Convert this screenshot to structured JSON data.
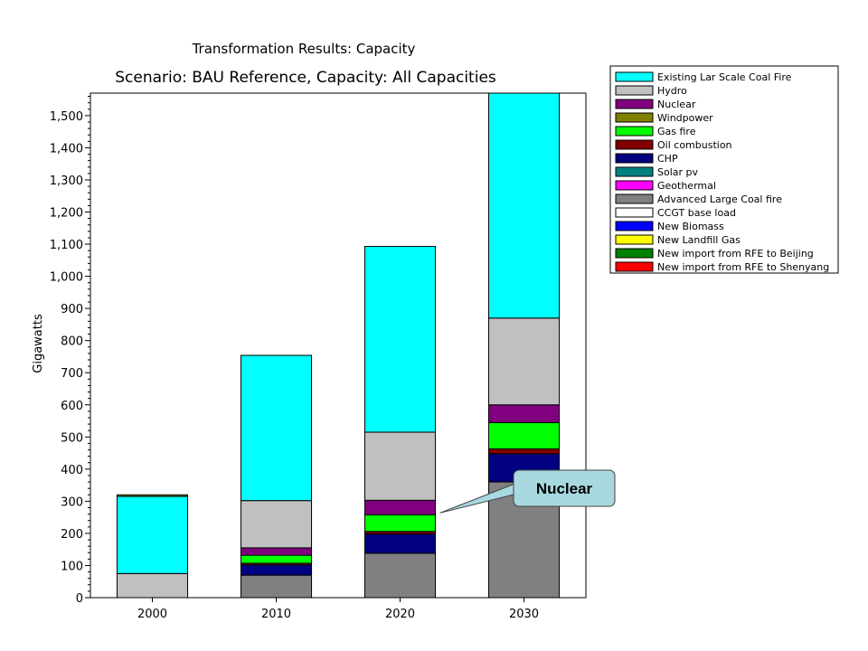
{
  "chart_data": {
    "type": "bar",
    "stacked": true,
    "title": "Transformation Results: Capacity",
    "subtitle": "Scenario: BAU Reference,  Capacity: All Capacities",
    "xlabel": "",
    "ylabel": "Gigawatts",
    "ylim": [
      0,
      1570
    ],
    "yticks": [
      0,
      100,
      200,
      300,
      400,
      500,
      600,
      700,
      800,
      900,
      1000,
      1100,
      1200,
      1300,
      1400,
      1500
    ],
    "ytick_labels": [
      "0",
      "100",
      "200",
      "300",
      "400",
      "500",
      "600",
      "700",
      "800",
      "900",
      "1,000",
      "1,100",
      "1,200",
      "1,300",
      "1,400",
      "1,500"
    ],
    "categories": [
      "2000",
      "2010",
      "2020",
      "2030"
    ],
    "legend_position": "right",
    "series": [
      {
        "name": "Advanced Large Coal fire",
        "color": "#808080",
        "values": [
          0,
          70,
          138,
          360
        ]
      },
      {
        "name": "CHP",
        "color": "#000080",
        "values": [
          0,
          32,
          60,
          88
        ]
      },
      {
        "name": "Oil combustion",
        "color": "#800000",
        "values": [
          0,
          5,
          8,
          15
        ]
      },
      {
        "name": "Gas fire",
        "color": "#00ff00",
        "values": [
          0,
          25,
          52,
          82
        ]
      },
      {
        "name": "Nuclear",
        "color": "#800080",
        "values": [
          0,
          23,
          45,
          55
        ]
      },
      {
        "name": "Hydro",
        "color": "#c0c0c0",
        "values": [
          75,
          147,
          212,
          270
        ]
      },
      {
        "name": "Existing Lar Scale Coal Fire",
        "color": "#00ffff",
        "values": [
          240,
          452,
          578,
          700
        ]
      },
      {
        "name": "Windpower",
        "color": "#808000",
        "values": [
          5,
          0,
          0,
          0
        ]
      }
    ],
    "legend": [
      {
        "name": "Existing Lar Scale Coal Fire",
        "color": "#00ffff"
      },
      {
        "name": "Hydro",
        "color": "#c0c0c0"
      },
      {
        "name": "Nuclear",
        "color": "#800080"
      },
      {
        "name": "Windpower",
        "color": "#808000"
      },
      {
        "name": "Gas fire",
        "color": "#00ff00"
      },
      {
        "name": "Oil combustion",
        "color": "#800000"
      },
      {
        "name": "CHP",
        "color": "#000080"
      },
      {
        "name": "Solar pv",
        "color": "#008080"
      },
      {
        "name": "Geothermal",
        "color": "#ff00ff"
      },
      {
        "name": "Advanced Large Coal fire",
        "color": "#808080"
      },
      {
        "name": "CCGT base load",
        "color": "#ffffff"
      },
      {
        "name": "New Biomass",
        "color": "#0000ff"
      },
      {
        "name": "New Landfill Gas",
        "color": "#ffff00"
      },
      {
        "name": "New import from RFE to Beijing",
        "color": "#008000"
      },
      {
        "name": "New import from RFE to Shenyang",
        "color": "#ff0000"
      }
    ],
    "annotations": [
      {
        "text": "Nuclear",
        "category": "2020",
        "series": "Nuclear"
      }
    ]
  }
}
